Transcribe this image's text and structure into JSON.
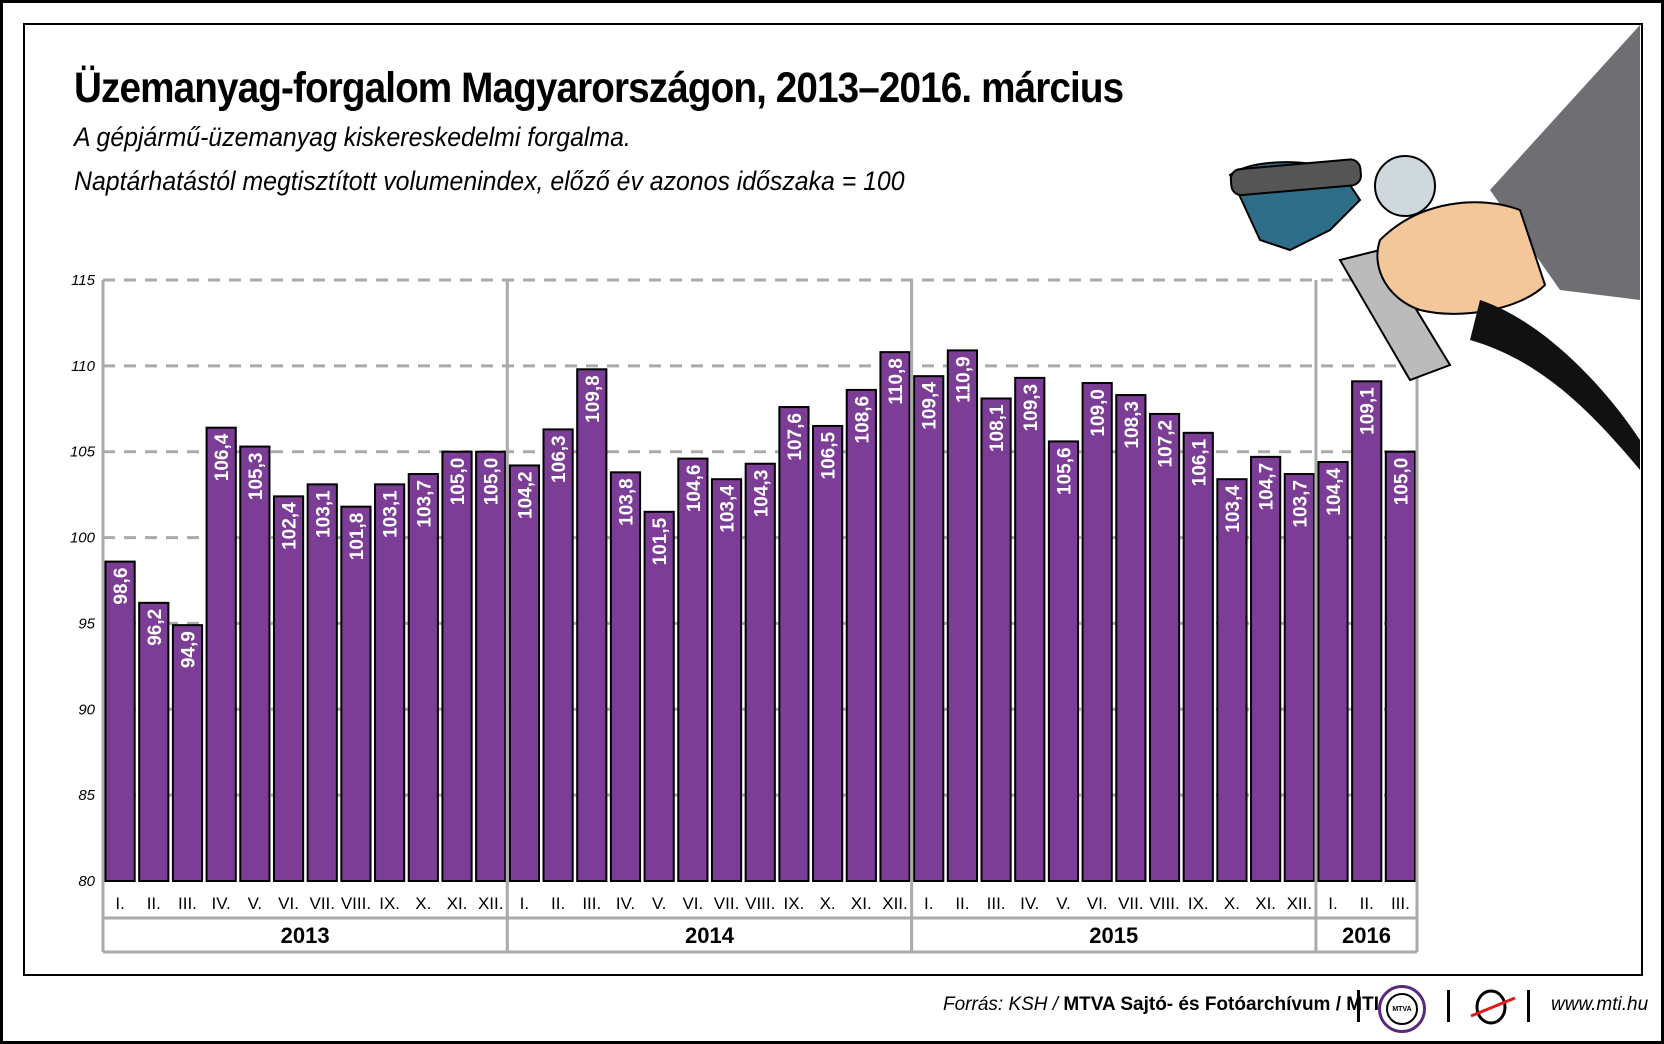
{
  "title": "Üzemanyag-forgalom Magyarországon, 2013–2016. március",
  "subtitle_lines": [
    "A gépjármű-üzemanyag kiskereskedelmi forgalma.",
    "Naptárhatástól megtisztított volumenindex, előző év azonos időszaka = 100"
  ],
  "footer": {
    "source_prefix": "Forrás: KSH /",
    "source_bold": "MTVA Sajtó- és Fotóarchívum / MTI",
    "logo_mtva": "MTVA",
    "website": "www.mti.hu"
  },
  "colors": {
    "bar": "#7b3d96",
    "grid": "#aaaaaa",
    "label": "#ffffff"
  },
  "chart_data": {
    "type": "bar",
    "title": "Üzemanyag-forgalom Magyarországon, 2013–2016. március",
    "ylim": [
      80,
      115
    ],
    "yticks": [
      80,
      85,
      90,
      95,
      100,
      105,
      110,
      115
    ],
    "grid": "horizontal dashed",
    "groups": [
      {
        "year": "2013",
        "months": [
          "I.",
          "II.",
          "III.",
          "IV.",
          "V.",
          "VI.",
          "VII.",
          "VIII.",
          "IX.",
          "X.",
          "XI.",
          "XII."
        ],
        "values": [
          98.6,
          96.2,
          94.9,
          106.4,
          105.3,
          102.4,
          103.1,
          101.8,
          103.1,
          103.7,
          105.0,
          105.0
        ]
      },
      {
        "year": "2014",
        "months": [
          "I.",
          "II.",
          "III.",
          "IV.",
          "V.",
          "VI.",
          "VII.",
          "VIII.",
          "IX.",
          "X.",
          "XI.",
          "XII."
        ],
        "values": [
          104.2,
          106.3,
          109.8,
          103.8,
          101.5,
          104.6,
          103.4,
          104.3,
          107.6,
          106.5,
          108.6,
          110.8
        ]
      },
      {
        "year": "2015",
        "months": [
          "I.",
          "II.",
          "III.",
          "IV.",
          "V.",
          "VI.",
          "VII.",
          "VIII.",
          "IX.",
          "X.",
          "XI.",
          "XII."
        ],
        "values": [
          109.4,
          110.9,
          108.1,
          109.3,
          105.6,
          109.0,
          108.3,
          107.2,
          106.1,
          103.4,
          104.7,
          103.7
        ]
      },
      {
        "year": "2016",
        "months": [
          "I.",
          "II.",
          "III."
        ],
        "values": [
          104.4,
          109.1,
          105.0
        ]
      }
    ]
  }
}
